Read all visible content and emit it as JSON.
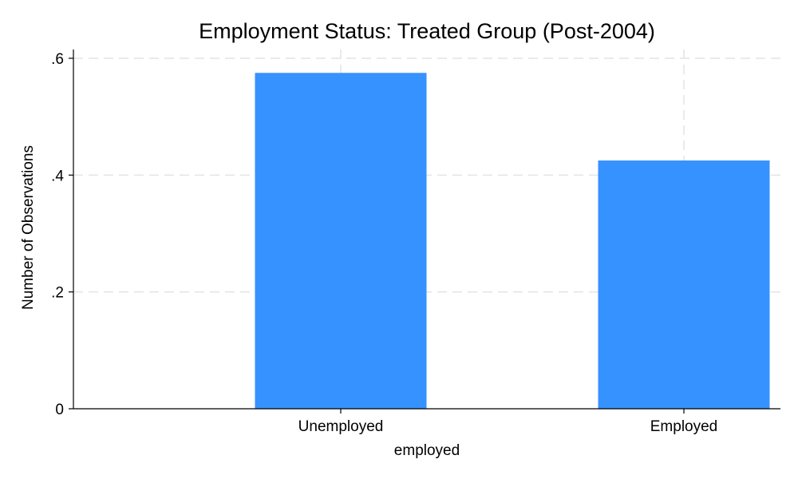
{
  "chart_data": {
    "type": "bar",
    "title": "Employment Status: Treated Group (Post-2004)",
    "xlabel": "employed",
    "ylabel": "Number of Observations",
    "categories": [
      "Unemployed",
      "Employed"
    ],
    "values": [
      0.575,
      0.425
    ],
    "ylim": [
      0,
      0.6
    ],
    "yticks": [
      0,
      0.2,
      0.4,
      0.6
    ],
    "ytick_labels": [
      "0",
      ".2",
      ".4",
      ".6"
    ],
    "grid": true,
    "bar_color": "#3592FF"
  }
}
